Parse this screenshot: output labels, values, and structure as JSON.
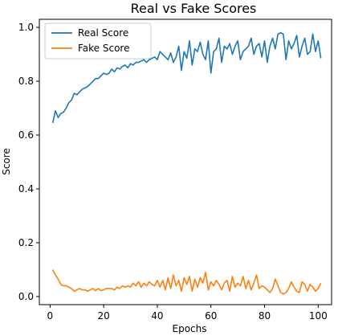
{
  "chart_data": {
    "type": "line",
    "title": "Real vs Fake Scores",
    "xlabel": "Epochs",
    "ylabel": "Score",
    "xlim": [
      -4,
      105
    ],
    "ylim": [
      -0.03,
      1.03
    ],
    "x_ticks": [
      0,
      20,
      40,
      60,
      80,
      100
    ],
    "y_ticks": [
      0.0,
      0.2,
      0.4,
      0.6,
      0.8,
      1.0
    ],
    "legend": "top-left",
    "grid": false,
    "series": [
      {
        "name": "Real Score",
        "color": "#1f77b4",
        "values": [
          0.645,
          0.69,
          0.665,
          0.68,
          0.685,
          0.7,
          0.72,
          0.73,
          0.755,
          0.75,
          0.76,
          0.77,
          0.775,
          0.78,
          0.79,
          0.8,
          0.81,
          0.81,
          0.82,
          0.83,
          0.825,
          0.83,
          0.845,
          0.835,
          0.85,
          0.845,
          0.855,
          0.86,
          0.85,
          0.865,
          0.86,
          0.87,
          0.87,
          0.875,
          0.88,
          0.87,
          0.88,
          0.885,
          0.89,
          0.88,
          0.91,
          0.9,
          0.89,
          0.88,
          0.905,
          0.87,
          0.89,
          0.93,
          0.84,
          0.91,
          0.885,
          0.95,
          0.86,
          0.92,
          0.91,
          0.945,
          0.9,
          0.88,
          0.95,
          0.83,
          0.91,
          0.92,
          0.96,
          0.87,
          0.93,
          0.92,
          0.94,
          0.9,
          0.93,
          0.95,
          0.88,
          0.91,
          0.92,
          0.93,
          0.96,
          0.9,
          0.93,
          0.94,
          0.89,
          0.95,
          0.87,
          0.93,
          0.96,
          0.92,
          0.975,
          0.98,
          0.975,
          0.88,
          0.95,
          0.92,
          0.94,
          0.97,
          0.89,
          0.93,
          0.96,
          0.9,
          0.91,
          0.975,
          0.91,
          0.95,
          0.885
        ],
        "x_start": 1
      },
      {
        "name": "Fake Score",
        "color": "#ff7f0e",
        "values": [
          0.1,
          0.08,
          0.065,
          0.045,
          0.04,
          0.04,
          0.035,
          0.03,
          0.02,
          0.025,
          0.03,
          0.025,
          0.025,
          0.02,
          0.025,
          0.03,
          0.022,
          0.03,
          0.022,
          0.025,
          0.03,
          0.03,
          0.03,
          0.025,
          0.035,
          0.03,
          0.04,
          0.035,
          0.04,
          0.035,
          0.05,
          0.04,
          0.055,
          0.035,
          0.05,
          0.04,
          0.055,
          0.045,
          0.04,
          0.06,
          0.035,
          0.06,
          0.025,
          0.07,
          0.03,
          0.08,
          0.04,
          0.06,
          0.02,
          0.07,
          0.045,
          0.075,
          0.02,
          0.065,
          0.035,
          0.07,
          0.05,
          0.09,
          0.025,
          0.055,
          0.04,
          0.06,
          0.045,
          0.025,
          0.05,
          0.06,
          0.02,
          0.075,
          0.035,
          0.05,
          0.04,
          0.075,
          0.03,
          0.06,
          0.025,
          0.05,
          0.08,
          0.03,
          0.04,
          0.035,
          0.025,
          0.015,
          0.03,
          0.065,
          0.04,
          0.015,
          0.01,
          0.015,
          0.03,
          0.055,
          0.035,
          0.02,
          0.015,
          0.055,
          0.045,
          0.02,
          0.045,
          0.035,
          0.02,
          0.03,
          0.05
        ],
        "x_start": 1
      }
    ]
  }
}
